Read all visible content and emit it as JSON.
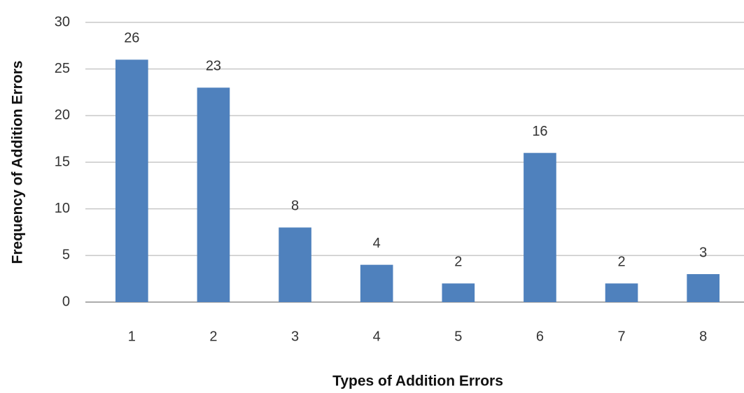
{
  "chart_data": {
    "type": "bar",
    "xlabel": "Types of Addition Errors",
    "ylabel": "Frequency of Addition Errors",
    "categories": [
      "1",
      "2",
      "3",
      "4",
      "5",
      "6",
      "7",
      "8"
    ],
    "values": [
      26,
      23,
      8,
      4,
      2,
      16,
      2,
      3
    ],
    "color": "#4f81bd",
    "ylim": [
      0,
      30
    ],
    "yticks": [
      0,
      5,
      10,
      15,
      20,
      25,
      30
    ],
    "grid": true
  }
}
